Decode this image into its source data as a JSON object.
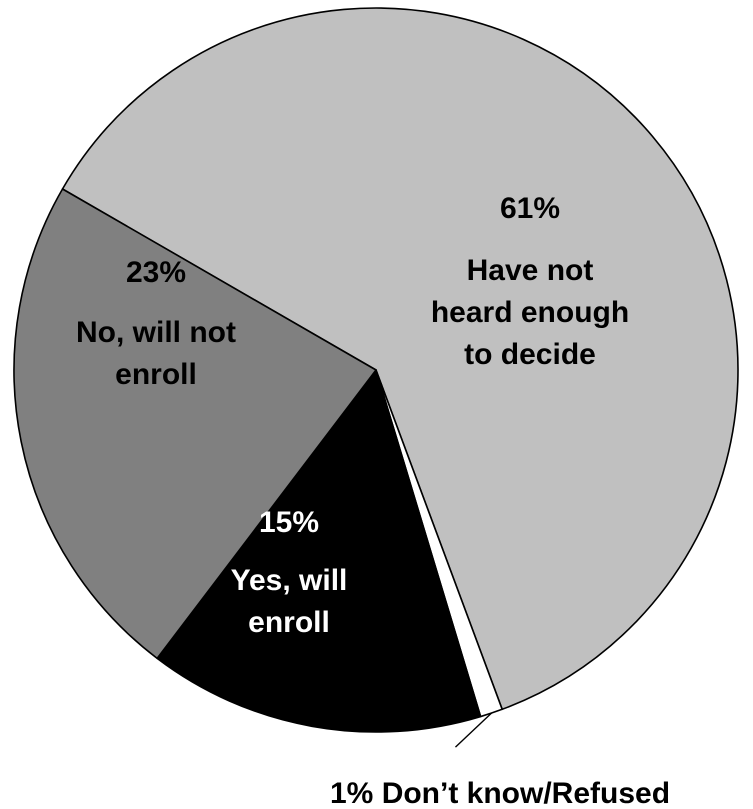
{
  "chart_data": {
    "type": "pie",
    "title": "",
    "slices": [
      {
        "value": 61,
        "pct_label": "61%",
        "label_lines": [
          "Have not",
          "heard enough",
          "to decide"
        ],
        "color": "#c0c0c0",
        "text_color": "#000000"
      },
      {
        "value": 1,
        "pct_label": "1% Don’t know/Refused",
        "label_lines": [],
        "color": "#ffffff",
        "text_color": "#000000",
        "callout": true
      },
      {
        "value": 15,
        "pct_label": "15%",
        "label_lines": [
          "Yes, will",
          "enroll"
        ],
        "color": "#000000",
        "text_color": "#ffffff"
      },
      {
        "value": 23,
        "pct_label": "23%",
        "label_lines": [
          "No, will not",
          "enroll"
        ],
        "color": "#808080",
        "text_color": "#000000"
      }
    ]
  }
}
